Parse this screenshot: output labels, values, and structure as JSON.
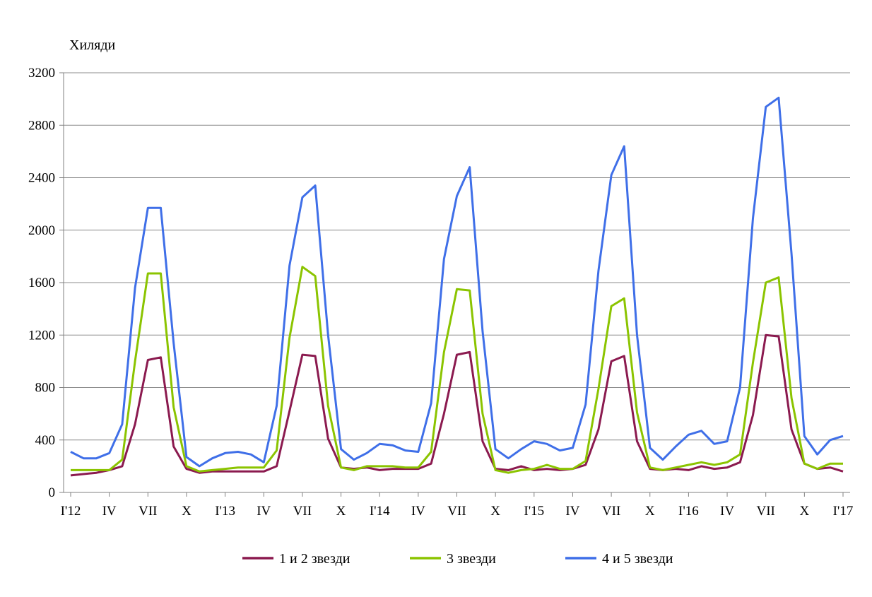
{
  "chart_data": {
    "type": "line",
    "ylabel": "Хиляди",
    "ylim": [
      0,
      3200
    ],
    "y_ticks": [
      0,
      400,
      800,
      1200,
      1600,
      2000,
      2400,
      2800,
      3200
    ],
    "y_tick_labels": [
      "0",
      "400",
      "800",
      "1200",
      "1600",
      "2000",
      "2400",
      "2800",
      "3200"
    ],
    "grid": "horizontal",
    "legend_position": "bottom",
    "x_tick_labels": [
      {
        "index": 0,
        "label": "I'12"
      },
      {
        "index": 3,
        "label": "IV"
      },
      {
        "index": 6,
        "label": "VII"
      },
      {
        "index": 9,
        "label": "X"
      },
      {
        "index": 12,
        "label": "I'13"
      },
      {
        "index": 15,
        "label": "IV"
      },
      {
        "index": 18,
        "label": "VII"
      },
      {
        "index": 21,
        "label": "X"
      },
      {
        "index": 24,
        "label": "I'14"
      },
      {
        "index": 27,
        "label": "IV"
      },
      {
        "index": 30,
        "label": "VII"
      },
      {
        "index": 33,
        "label": "X"
      },
      {
        "index": 36,
        "label": "I'15"
      },
      {
        "index": 39,
        "label": "IV"
      },
      {
        "index": 42,
        "label": "VII"
      },
      {
        "index": 45,
        "label": "X"
      },
      {
        "index": 48,
        "label": "I'16"
      },
      {
        "index": 51,
        "label": "IV"
      },
      {
        "index": 54,
        "label": "VII"
      },
      {
        "index": 57,
        "label": "X"
      },
      {
        "index": 60,
        "label": "I'17"
      }
    ],
    "series": [
      {
        "name": "1 и 2 звезди",
        "color": "#8B1A4F",
        "values": [
          130,
          140,
          150,
          170,
          200,
          520,
          1010,
          1030,
          350,
          180,
          150,
          160,
          160,
          160,
          160,
          160,
          200,
          620,
          1050,
          1040,
          410,
          190,
          180,
          190,
          170,
          180,
          180,
          180,
          220,
          600,
          1050,
          1070,
          390,
          180,
          170,
          200,
          170,
          180,
          170,
          180,
          210,
          480,
          1000,
          1040,
          390,
          180,
          170,
          180,
          170,
          200,
          180,
          190,
          230,
          590,
          1200,
          1190,
          480,
          220,
          180,
          190,
          160
        ]
      },
      {
        "name": "3 звезди",
        "color": "#8BC400",
        "values": [
          170,
          170,
          170,
          170,
          250,
          1000,
          1670,
          1670,
          650,
          200,
          160,
          170,
          180,
          190,
          190,
          190,
          320,
          1180,
          1720,
          1650,
          660,
          190,
          170,
          200,
          200,
          200,
          190,
          190,
          310,
          1070,
          1550,
          1540,
          600,
          170,
          150,
          170,
          180,
          210,
          180,
          180,
          240,
          790,
          1420,
          1480,
          610,
          190,
          170,
          190,
          210,
          230,
          210,
          230,
          290,
          990,
          1600,
          1640,
          720,
          220,
          180,
          220,
          220
        ]
      },
      {
        "name": "4 и 5 звезди",
        "color": "#3F6FE8",
        "values": [
          310,
          260,
          260,
          300,
          520,
          1560,
          2170,
          2170,
          1140,
          270,
          200,
          260,
          300,
          310,
          290,
          230,
          660,
          1730,
          2250,
          2340,
          1200,
          330,
          250,
          300,
          370,
          360,
          320,
          310,
          680,
          1780,
          2260,
          2480,
          1230,
          330,
          260,
          330,
          390,
          370,
          320,
          340,
          670,
          1690,
          2420,
          2640,
          1200,
          340,
          250,
          350,
          440,
          470,
          370,
          390,
          800,
          2090,
          2940,
          3010,
          1820,
          430,
          290,
          400,
          430
        ]
      }
    ]
  }
}
